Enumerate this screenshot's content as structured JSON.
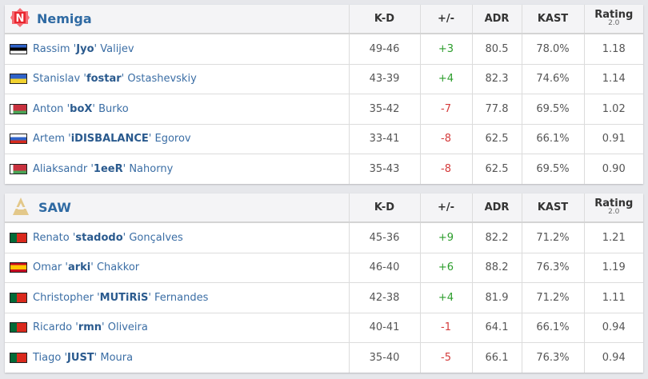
{
  "columns": {
    "kd": "K-D",
    "pm": "+/-",
    "adr": "ADR",
    "kast": "KAST",
    "rating": "Rating",
    "rating_version": "2.0"
  },
  "teams": [
    {
      "name": "Nemiga",
      "logo": "nemiga-logo",
      "players": [
        {
          "first": "Rassim",
          "nick": "Jyo",
          "last": "Valijev",
          "flag": "estonia",
          "kd": "49-46",
          "pm": "+3",
          "adr": "80.5",
          "kast": "78.0%",
          "rating": "1.18"
        },
        {
          "first": "Stanislav",
          "nick": "fostar",
          "last": "Ostashevskiy",
          "flag": "ukraine",
          "kd": "43-39",
          "pm": "+4",
          "adr": "82.3",
          "kast": "74.6%",
          "rating": "1.14"
        },
        {
          "first": "Anton",
          "nick": "boX",
          "last": "Burko",
          "flag": "belarus",
          "kd": "35-42",
          "pm": "-7",
          "adr": "77.8",
          "kast": "69.5%",
          "rating": "1.02"
        },
        {
          "first": "Artem",
          "nick": "iDISBALANCE",
          "last": "Egorov",
          "flag": "russia",
          "kd": "33-41",
          "pm": "-8",
          "adr": "62.5",
          "kast": "66.1%",
          "rating": "0.91"
        },
        {
          "first": "Aliaksandr",
          "nick": "1eeR",
          "last": "Nahorny",
          "flag": "belarus",
          "kd": "35-43",
          "pm": "-8",
          "adr": "62.5",
          "kast": "69.5%",
          "rating": "0.90"
        }
      ]
    },
    {
      "name": "SAW",
      "logo": "saw-logo",
      "players": [
        {
          "first": "Renato",
          "nick": "stadodo",
          "last": "Gonçalves",
          "flag": "portugal",
          "kd": "45-36",
          "pm": "+9",
          "adr": "82.2",
          "kast": "71.2%",
          "rating": "1.21"
        },
        {
          "first": "Omar",
          "nick": "arki",
          "last": "Chakkor",
          "flag": "spain",
          "kd": "46-40",
          "pm": "+6",
          "adr": "88.2",
          "kast": "76.3%",
          "rating": "1.19"
        },
        {
          "first": "Christopher",
          "nick": "MUTiRiS",
          "last": "Fernandes",
          "flag": "portugal",
          "kd": "42-38",
          "pm": "+4",
          "adr": "81.9",
          "kast": "71.2%",
          "rating": "1.11"
        },
        {
          "first": "Ricardo",
          "nick": "rmn",
          "last": "Oliveira",
          "flag": "portugal",
          "kd": "40-41",
          "pm": "-1",
          "adr": "64.1",
          "kast": "66.1%",
          "rating": "0.94"
        },
        {
          "first": "Tiago",
          "nick": "JUST",
          "last": "Moura",
          "flag": "portugal",
          "kd": "35-40",
          "pm": "-5",
          "adr": "66.1",
          "kast": "76.3%",
          "rating": "0.94"
        }
      ]
    }
  ],
  "colors": {
    "positive": "#2c9d2c",
    "negative": "#d43b3b",
    "link": "#3b6ea5"
  }
}
